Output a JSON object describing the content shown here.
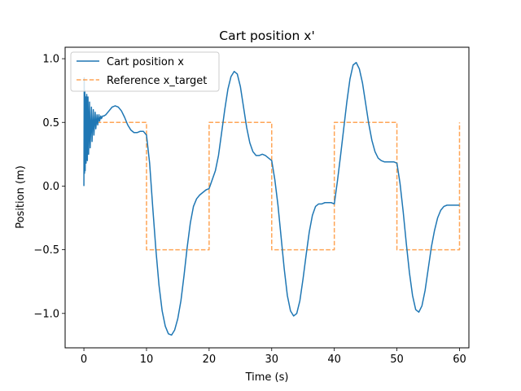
{
  "chart_data": {
    "type": "line",
    "title": "Cart position x'",
    "xlabel": "Time (s)",
    "ylabel": "Position (m)",
    "xlim": [
      -3,
      61.5
    ],
    "ylim": [
      -1.27,
      1.09
    ],
    "xticks": [
      0,
      10,
      20,
      30,
      40,
      50,
      60
    ],
    "xtick_labels": [
      "0",
      "10",
      "20",
      "30",
      "40",
      "50",
      "60"
    ],
    "yticks": [
      -1.0,
      -0.5,
      0.0,
      0.5,
      1.0
    ],
    "ytick_labels": [
      "−1.0",
      "−0.5",
      "0.0",
      "0.5",
      "1.0"
    ],
    "grid": false,
    "legend_position": "top-left",
    "series": [
      {
        "name": "Cart position x",
        "color": "#1f77b4",
        "style": "solid",
        "x": [
          0.0,
          0.05,
          0.1,
          0.15,
          0.2,
          0.3,
          0.35,
          0.45,
          0.55,
          0.65,
          0.75,
          0.9,
          1.0,
          1.2,
          1.3,
          1.5,
          1.6,
          1.8,
          1.9,
          2.1,
          2.2,
          2.4,
          2.5,
          2.7,
          2.8,
          3.0,
          3.2,
          3.5,
          4.0,
          4.5,
          5.0,
          5.5,
          6.0,
          6.5,
          7.0,
          7.5,
          8.0,
          8.5,
          9.0,
          9.5,
          10.0,
          10.5,
          11.0,
          11.5,
          12.0,
          12.5,
          13.0,
          13.5,
          14.0,
          14.5,
          15.0,
          15.5,
          16.0,
          16.5,
          17.0,
          17.5,
          18.0,
          18.5,
          19.0,
          19.5,
          20.0,
          20.5,
          21.0,
          21.5,
          22.0,
          22.5,
          23.0,
          23.5,
          24.0,
          24.5,
          25.0,
          25.5,
          26.0,
          26.5,
          27.0,
          27.5,
          28.0,
          28.5,
          29.0,
          29.5,
          30.0,
          30.5,
          31.0,
          31.5,
          32.0,
          32.5,
          33.0,
          33.5,
          34.0,
          34.5,
          35.0,
          35.5,
          36.0,
          36.5,
          37.0,
          37.5,
          38.0,
          38.5,
          39.0,
          39.5,
          40.0,
          40.5,
          41.0,
          41.5,
          42.0,
          42.5,
          43.0,
          43.5,
          44.0,
          44.5,
          45.0,
          45.5,
          46.0,
          46.5,
          47.0,
          47.5,
          48.0,
          48.5,
          49.0,
          49.5,
          50.0,
          50.5,
          51.0,
          51.5,
          52.0,
          52.5,
          53.0,
          53.5,
          54.0,
          54.5,
          55.0,
          55.5,
          56.0,
          56.5,
          57.0,
          57.5,
          58.0,
          58.5,
          59.0,
          59.5,
          60.0
        ],
        "y": [
          0.0,
          0.85,
          0.1,
          0.75,
          0.12,
          0.7,
          0.18,
          0.72,
          0.2,
          0.7,
          0.25,
          0.66,
          0.3,
          0.62,
          0.35,
          0.6,
          0.4,
          0.58,
          0.45,
          0.56,
          0.48,
          0.56,
          0.51,
          0.55,
          0.53,
          0.55,
          0.55,
          0.56,
          0.59,
          0.62,
          0.63,
          0.62,
          0.59,
          0.54,
          0.48,
          0.44,
          0.42,
          0.42,
          0.43,
          0.43,
          0.4,
          0.18,
          -0.17,
          -0.5,
          -0.78,
          -0.98,
          -1.1,
          -1.16,
          -1.17,
          -1.13,
          -1.04,
          -0.9,
          -0.7,
          -0.48,
          -0.29,
          -0.16,
          -0.1,
          -0.07,
          -0.05,
          -0.03,
          -0.02,
          0.05,
          0.12,
          0.24,
          0.42,
          0.6,
          0.76,
          0.86,
          0.9,
          0.88,
          0.78,
          0.62,
          0.46,
          0.34,
          0.27,
          0.24,
          0.24,
          0.25,
          0.24,
          0.22,
          0.2,
          0.05,
          -0.15,
          -0.4,
          -0.65,
          -0.86,
          -0.98,
          -1.02,
          -1.0,
          -0.9,
          -0.73,
          -0.54,
          -0.36,
          -0.23,
          -0.16,
          -0.14,
          -0.14,
          -0.13,
          -0.13,
          -0.13,
          -0.14,
          0.04,
          0.24,
          0.45,
          0.66,
          0.84,
          0.95,
          0.97,
          0.92,
          0.81,
          0.65,
          0.49,
          0.36,
          0.27,
          0.22,
          0.2,
          0.19,
          0.19,
          0.19,
          0.19,
          0.18,
          0.02,
          -0.2,
          -0.45,
          -0.68,
          -0.86,
          -0.97,
          -0.99,
          -0.94,
          -0.82,
          -0.65,
          -0.48,
          -0.35,
          -0.25,
          -0.19,
          -0.16,
          -0.15,
          -0.15,
          -0.15,
          -0.15,
          -0.15
        ]
      },
      {
        "name": "Reference x_target",
        "color": "#ff7f0e",
        "style": "dashed",
        "x": [
          0,
          10,
          10,
          20,
          20,
          30,
          30,
          40,
          40,
          50,
          50,
          60,
          60
        ],
        "y": [
          0.5,
          0.5,
          -0.5,
          -0.5,
          0.5,
          0.5,
          -0.5,
          -0.5,
          0.5,
          0.5,
          -0.5,
          -0.5,
          0.5
        ]
      }
    ]
  }
}
